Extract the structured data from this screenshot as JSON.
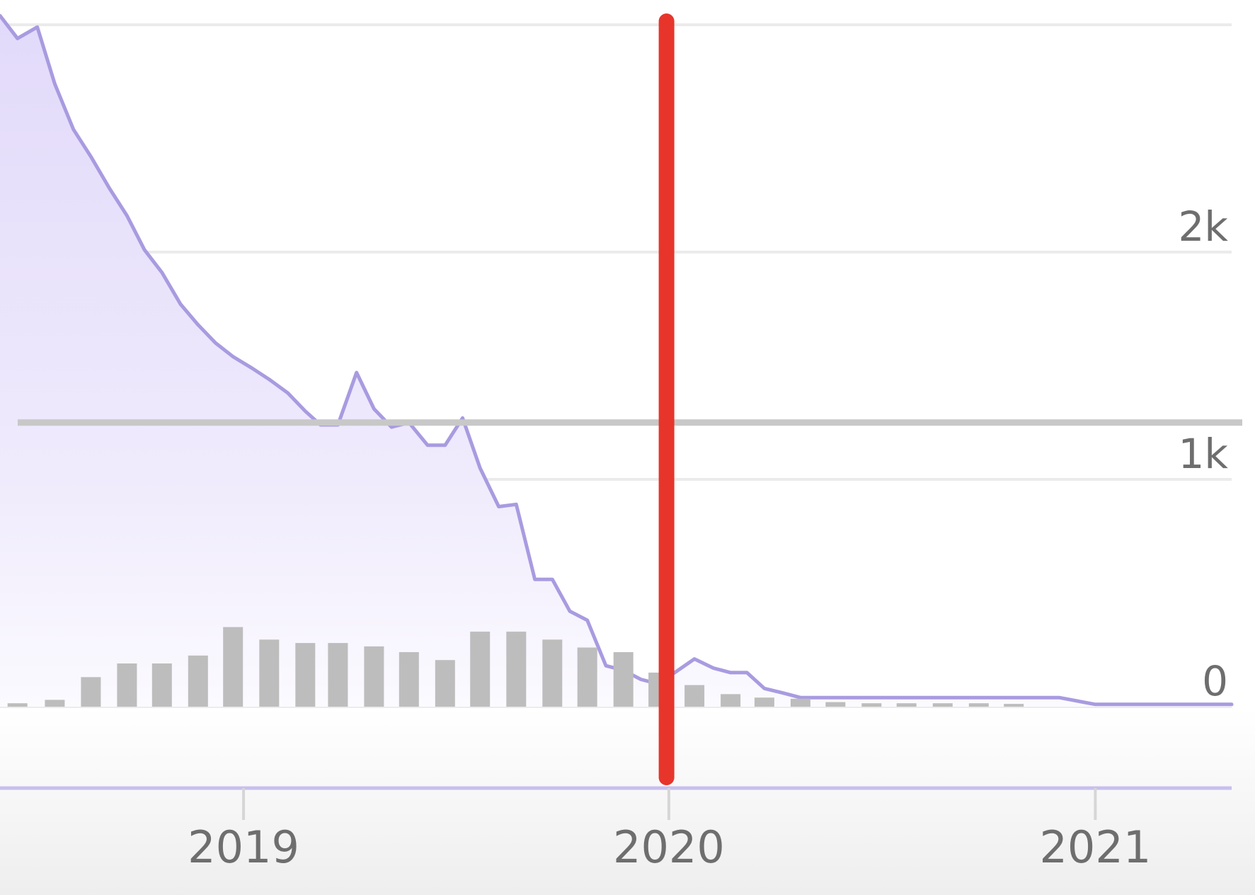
{
  "chart_data": {
    "type": "area",
    "title": "",
    "xlabel": "",
    "ylabel": "",
    "x_range": [
      "2018-06-06",
      "2021-04-28"
    ],
    "ylim": [
      0,
      3000
    ],
    "y_ticks": [
      {
        "value": 0,
        "label": "0"
      },
      {
        "value": 1000,
        "label": "1k"
      },
      {
        "value": 2000,
        "label": "2k"
      }
    ],
    "x_ticks": [
      {
        "date": "2019-01-01",
        "label": "2019"
      },
      {
        "date": "2020-01-01",
        "label": "2020"
      },
      {
        "date": "2021-01-01",
        "label": "2021"
      }
    ],
    "grid": true,
    "y_axis_side": "right",
    "series": [
      {
        "kind": "area",
        "color": "#a99be0",
        "fill": "#e9e3fb",
        "points": [
          [
            "2018-06-06",
            3040
          ],
          [
            "2018-06-21",
            2940
          ],
          [
            "2018-07-08",
            2990
          ],
          [
            "2018-07-23",
            2740
          ],
          [
            "2018-08-08",
            2540
          ],
          [
            "2018-08-23",
            2420
          ],
          [
            "2018-09-08",
            2280
          ],
          [
            "2018-09-23",
            2160
          ],
          [
            "2018-10-08",
            2010
          ],
          [
            "2018-10-23",
            1910
          ],
          [
            "2018-11-08",
            1770
          ],
          [
            "2018-11-23",
            1680
          ],
          [
            "2018-12-08",
            1600
          ],
          [
            "2018-12-23",
            1540
          ],
          [
            "2019-01-08",
            1490
          ],
          [
            "2019-01-23",
            1440
          ],
          [
            "2019-02-08",
            1380
          ],
          [
            "2019-02-23",
            1300
          ],
          [
            "2019-03-08",
            1240
          ],
          [
            "2019-03-23",
            1240
          ],
          [
            "2019-04-08",
            1470
          ],
          [
            "2019-04-23",
            1310
          ],
          [
            "2019-05-08",
            1230
          ],
          [
            "2019-05-23",
            1250
          ],
          [
            "2019-06-08",
            1150
          ],
          [
            "2019-06-23",
            1150
          ],
          [
            "2019-07-08",
            1270
          ],
          [
            "2019-07-23",
            1050
          ],
          [
            "2019-08-08",
            880
          ],
          [
            "2019-08-23",
            890
          ],
          [
            "2019-09-08",
            560
          ],
          [
            "2019-09-23",
            560
          ],
          [
            "2019-10-08",
            420
          ],
          [
            "2019-10-23",
            380
          ],
          [
            "2019-11-08",
            180
          ],
          [
            "2019-11-23",
            160
          ],
          [
            "2019-12-08",
            120
          ],
          [
            "2019-12-23",
            100
          ],
          [
            "2020-01-23",
            210
          ],
          [
            "2020-02-08",
            170
          ],
          [
            "2020-02-23",
            150
          ],
          [
            "2020-03-08",
            150
          ],
          [
            "2020-03-23",
            80
          ],
          [
            "2020-04-08",
            60
          ],
          [
            "2020-04-23",
            40
          ],
          [
            "2020-06-01",
            40
          ],
          [
            "2020-09-01",
            40
          ],
          [
            "2020-12-01",
            40
          ],
          [
            "2021-01-01",
            10
          ],
          [
            "2021-04-28",
            10
          ]
        ]
      },
      {
        "kind": "bar",
        "color": "#bdbdbd",
        "points": [
          [
            "2018-06-21",
            15
          ],
          [
            "2018-07-23",
            30
          ],
          [
            "2018-08-23",
            130
          ],
          [
            "2018-09-23",
            190
          ],
          [
            "2018-10-23",
            190
          ],
          [
            "2018-11-23",
            225
          ],
          [
            "2018-12-23",
            350
          ],
          [
            "2019-01-23",
            295
          ],
          [
            "2019-02-23",
            280
          ],
          [
            "2019-03-23",
            280
          ],
          [
            "2019-04-23",
            265
          ],
          [
            "2019-05-23",
            240
          ],
          [
            "2019-06-23",
            205
          ],
          [
            "2019-07-23",
            330
          ],
          [
            "2019-08-23",
            330
          ],
          [
            "2019-09-23",
            295
          ],
          [
            "2019-10-23",
            260
          ],
          [
            "2019-11-23",
            240
          ],
          [
            "2019-12-23",
            150
          ],
          [
            "2020-01-23",
            95
          ],
          [
            "2020-02-23",
            55
          ],
          [
            "2020-03-23",
            40
          ],
          [
            "2020-04-23",
            35
          ],
          [
            "2020-05-23",
            20
          ],
          [
            "2020-06-23",
            15
          ],
          [
            "2020-07-23",
            15
          ],
          [
            "2020-08-23",
            15
          ],
          [
            "2020-09-23",
            15
          ],
          [
            "2020-10-23",
            12
          ]
        ]
      }
    ],
    "annotations": [
      {
        "kind": "vertical-line",
        "date": "2019-12-30",
        "color": "#e8352b"
      },
      {
        "kind": "horizontal-line",
        "value": 1250,
        "color": "#c8c8c8"
      }
    ],
    "colors": {
      "grid": "#ebebeb",
      "axis": "#c8bfee",
      "tick_label": "#6e6e6e"
    }
  }
}
